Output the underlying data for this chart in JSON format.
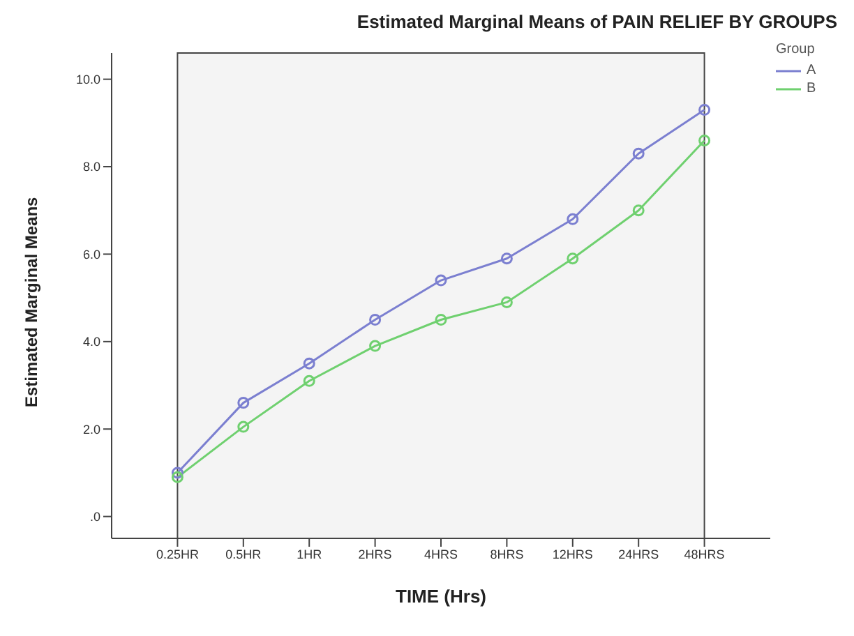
{
  "chart_data": {
    "type": "line",
    "title": "Estimated Marginal Means of PAIN RELIEF BY GROUPS",
    "xlabel": "TIME (Hrs)",
    "ylabel": "Estimated Marginal Means",
    "legend_title": "Group",
    "categories": [
      "0.25HR",
      "0.5HR",
      "1HR",
      "2HRS",
      "4HRS",
      "8HRS",
      "12HRS",
      "24HRS",
      "48HRS"
    ],
    "series": [
      {
        "name": "A",
        "color": "#7b7fd0",
        "values": [
          1.0,
          2.6,
          3.5,
          4.5,
          5.4,
          5.9,
          6.8,
          8.3,
          9.3
        ]
      },
      {
        "name": "B",
        "color": "#6fd06f",
        "values": [
          0.9,
          2.05,
          3.1,
          3.9,
          4.5,
          4.9,
          5.9,
          7.0,
          8.6
        ]
      }
    ],
    "ylim": [
      -0.5,
      10.6
    ],
    "yticks": [
      {
        "value": 0,
        "label": ".0"
      },
      {
        "value": 2,
        "label": "2.0"
      },
      {
        "value": 4,
        "label": "4.0"
      },
      {
        "value": 6,
        "label": "6.0"
      },
      {
        "value": 8,
        "label": "8.0"
      },
      {
        "value": 10,
        "label": "10.0"
      }
    ],
    "grid": false,
    "legend": "top right",
    "marker": "circle",
    "line_style": "solid"
  }
}
